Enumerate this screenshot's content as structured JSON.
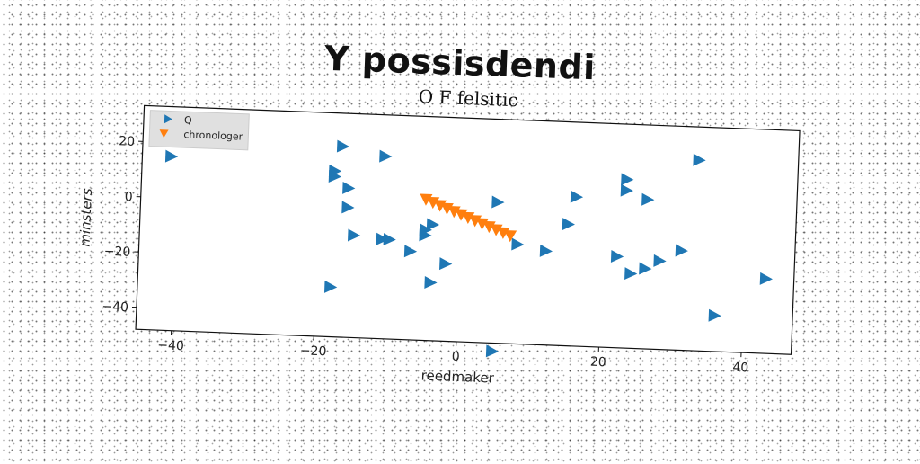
{
  "chart_data": {
    "type": "scatter",
    "title": "Y possisdendi",
    "subtitle": "O F felsitic",
    "xlabel": "reedmaker",
    "ylabel": "minsters",
    "xlim": [
      -45,
      47
    ],
    "ylim": [
      -48,
      33
    ],
    "xticks": [
      -40,
      -20,
      0,
      20,
      40
    ],
    "yticks": [
      -40,
      -20,
      0,
      20
    ],
    "legend": "top-left",
    "grid": false,
    "series": [
      {
        "name": "Q",
        "marker": "triangle-right",
        "color": "#1f77b4",
        "x": [
          -41,
          -17,
          -11,
          -18,
          -18,
          -16,
          -16,
          -15,
          -11,
          -10,
          -7,
          -5,
          -5,
          -4,
          -2,
          -4,
          -18,
          5,
          5,
          8,
          12,
          16,
          15,
          23,
          23,
          26,
          22,
          31,
          28,
          26,
          24,
          33,
          43,
          36
        ],
        "y": [
          15,
          21,
          18,
          12,
          10,
          6,
          -1,
          -11,
          -12,
          -12,
          -16,
          -10,
          -8,
          -6,
          -20,
          -27,
          -30,
          3,
          -51,
          -12,
          -14,
          6,
          -4,
          13,
          9,
          6,
          -15,
          -12,
          -16,
          -19,
          -21,
          21,
          -21,
          -35
        ]
      },
      {
        "name": "chronologer",
        "marker": "triangle-down",
        "color": "#ff7f0e",
        "x": [
          -5,
          -4,
          -3,
          -2,
          -1,
          0,
          1,
          2,
          3,
          4,
          5,
          6,
          7
        ],
        "y": [
          3,
          2,
          1,
          0,
          -1,
          -2,
          -3,
          -4,
          -5,
          -6,
          -7,
          -8,
          -9
        ]
      }
    ]
  }
}
